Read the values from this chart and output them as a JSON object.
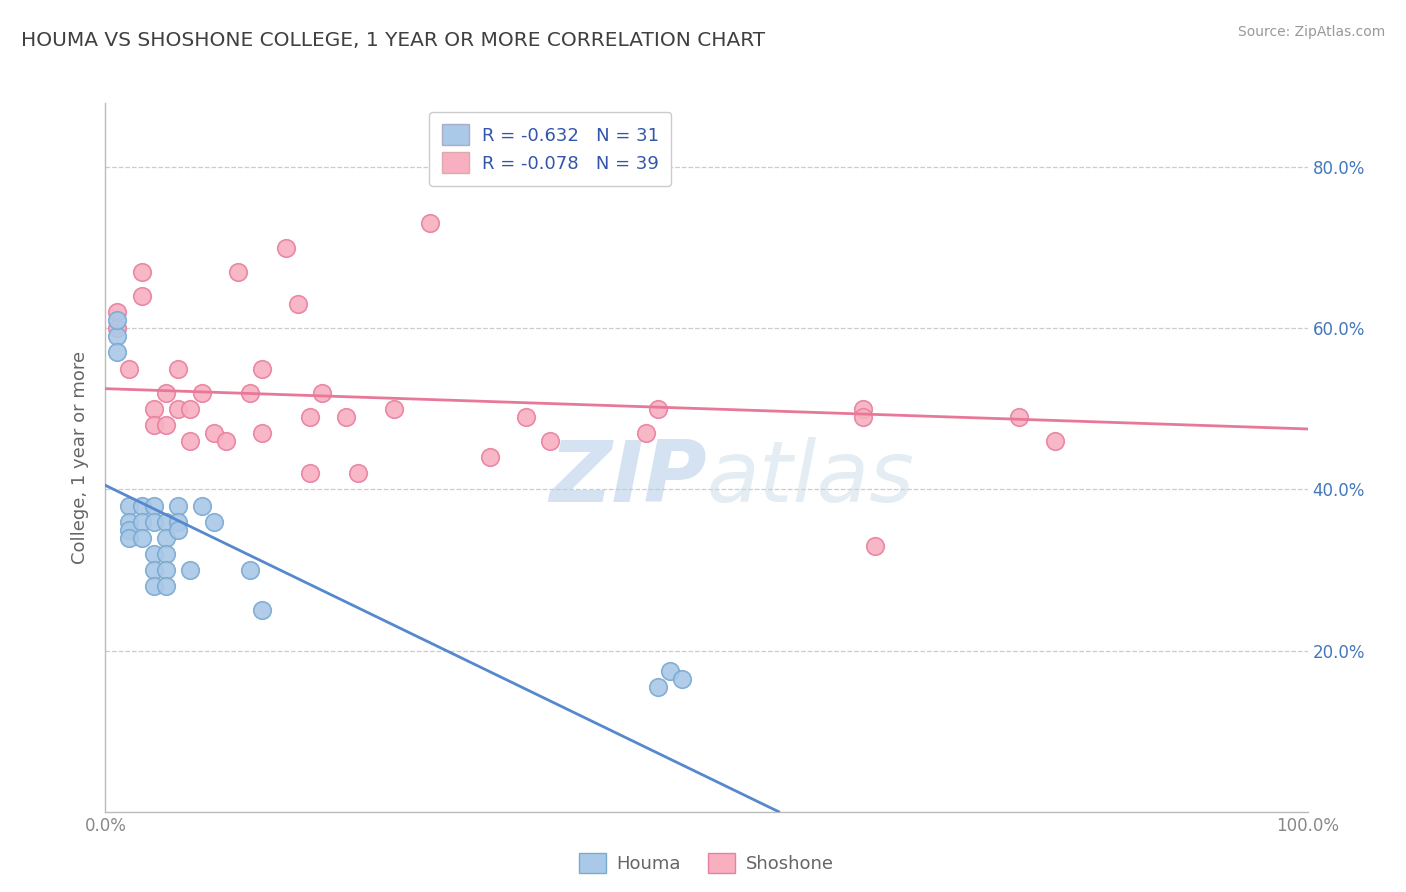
{
  "title": "HOUMA VS SHOSHONE COLLEGE, 1 YEAR OR MORE CORRELATION CHART",
  "source_text": "Source: ZipAtlas.com",
  "ylabel": "College, 1 year or more",
  "xlim": [
    0,
    1.0
  ],
  "ylim": [
    0,
    0.88
  ],
  "houma_R": -0.632,
  "houma_N": 31,
  "shoshone_R": -0.078,
  "shoshone_N": 39,
  "houma_color": "#aac8e8",
  "houma_edge_color": "#7aaad0",
  "shoshone_color": "#f8b0c0",
  "shoshone_edge_color": "#e880a0",
  "houma_line_color": "#5588cc",
  "shoshone_line_color": "#e87898",
  "legend_text_color": "#3355aa",
  "title_color": "#404040",
  "watermark_color": "#ccdded",
  "background_color": "#ffffff",
  "houma_x": [
    0.01,
    0.01,
    0.01,
    0.02,
    0.02,
    0.02,
    0.02,
    0.03,
    0.03,
    0.03,
    0.04,
    0.04,
    0.04,
    0.04,
    0.04,
    0.05,
    0.05,
    0.05,
    0.05,
    0.05,
    0.06,
    0.06,
    0.06,
    0.07,
    0.08,
    0.09,
    0.12,
    0.13,
    0.46,
    0.47,
    0.48
  ],
  "houma_y": [
    0.59,
    0.61,
    0.57,
    0.38,
    0.36,
    0.35,
    0.34,
    0.38,
    0.36,
    0.34,
    0.32,
    0.3,
    0.28,
    0.38,
    0.36,
    0.36,
    0.34,
    0.32,
    0.3,
    0.28,
    0.38,
    0.36,
    0.35,
    0.3,
    0.38,
    0.36,
    0.3,
    0.25,
    0.155,
    0.175,
    0.165
  ],
  "shoshone_x": [
    0.01,
    0.01,
    0.02,
    0.03,
    0.03,
    0.04,
    0.04,
    0.05,
    0.05,
    0.06,
    0.06,
    0.07,
    0.07,
    0.08,
    0.09,
    0.1,
    0.11,
    0.12,
    0.13,
    0.13,
    0.15,
    0.16,
    0.17,
    0.17,
    0.18,
    0.2,
    0.21,
    0.24,
    0.27,
    0.32,
    0.35,
    0.37,
    0.45,
    0.46,
    0.63,
    0.63,
    0.64,
    0.76,
    0.79
  ],
  "shoshone_y": [
    0.62,
    0.6,
    0.55,
    0.67,
    0.64,
    0.5,
    0.48,
    0.52,
    0.48,
    0.55,
    0.5,
    0.5,
    0.46,
    0.52,
    0.47,
    0.46,
    0.67,
    0.52,
    0.47,
    0.55,
    0.7,
    0.63,
    0.49,
    0.42,
    0.52,
    0.49,
    0.42,
    0.5,
    0.73,
    0.44,
    0.49,
    0.46,
    0.47,
    0.5,
    0.5,
    0.49,
    0.33,
    0.49,
    0.46
  ],
  "houma_trendline_x": [
    0.0,
    0.56
  ],
  "houma_trendline_y": [
    0.405,
    0.0
  ],
  "shoshone_trendline_x": [
    0.0,
    1.0
  ],
  "shoshone_trendline_y": [
    0.525,
    0.475
  ]
}
